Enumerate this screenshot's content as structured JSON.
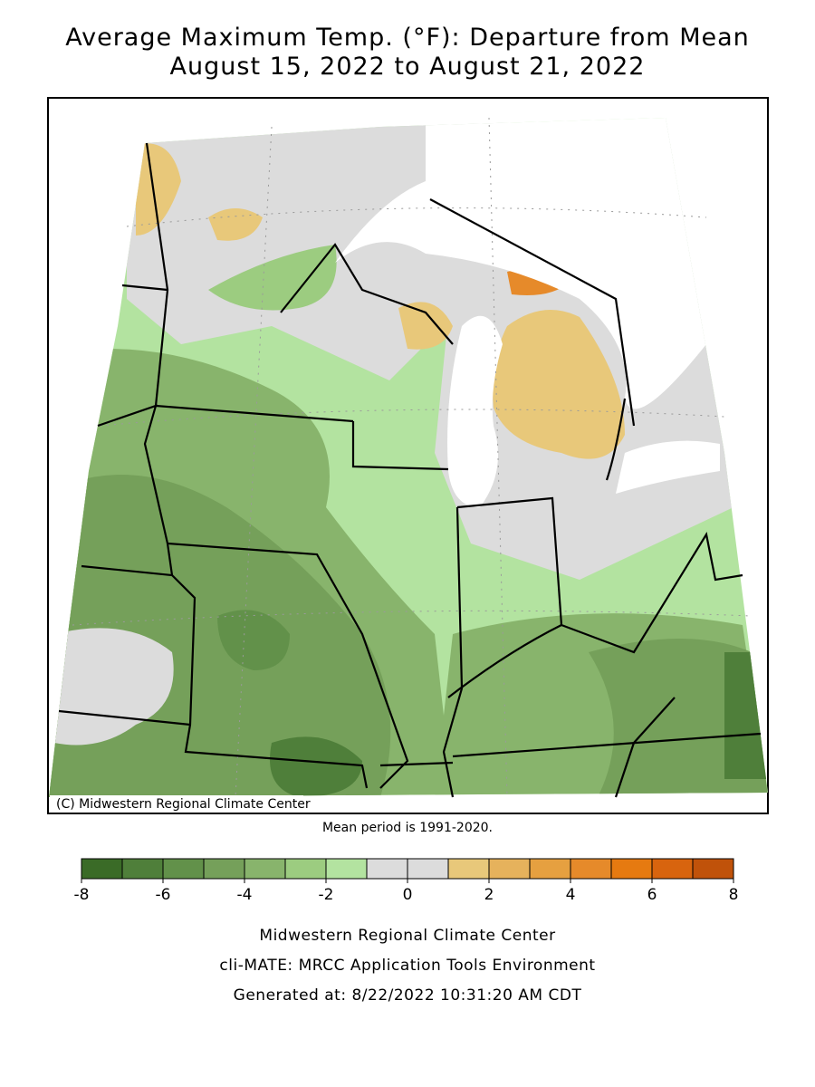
{
  "chart_data": {
    "type": "colorbar",
    "title": "Average Maximum Temp. (°F): Departure from Mean",
    "subtitle": "August 15, 2022 to August 21, 2022",
    "credit": "(C) Midwestern Regional Climate Center",
    "note": "Mean period is 1991-2020.",
    "bins": [
      -8,
      -7,
      -6,
      -5,
      -4,
      -3,
      -2,
      -1,
      0,
      1,
      2,
      3,
      4,
      5,
      6,
      7,
      8
    ],
    "colors": [
      "#3a6b27",
      "#4f7f3a",
      "#62914a",
      "#75a05a",
      "#88b46c",
      "#9ccc80",
      "#b3e3a0",
      "#dcdcdc",
      "#dcdcdc",
      "#e8c87a",
      "#e6b25c",
      "#e6a040",
      "#e68a2a",
      "#e67a10",
      "#d8640e",
      "#c0520a"
    ],
    "xlim": [
      -8,
      8
    ],
    "xticks": [
      -8,
      -6,
      -4,
      -2,
      0,
      2,
      4,
      6,
      8
    ],
    "footer": [
      "Midwestern Regional Climate Center",
      "cli-MATE: MRCC Application Tools Environment",
      "Generated at: 8/22/2022 10:31:20 AM CDT"
    ]
  }
}
